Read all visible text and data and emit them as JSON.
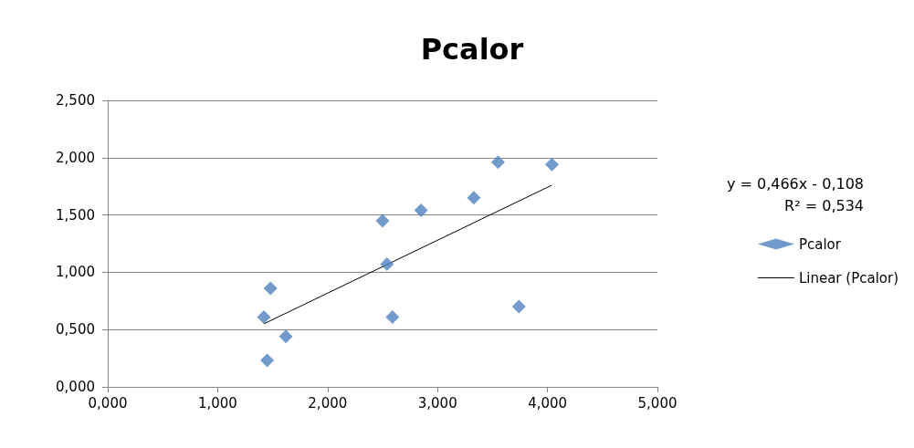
{
  "chart_data": {
    "type": "scatter",
    "title": "Pcalor",
    "x": [
      1.42,
      1.48,
      1.45,
      1.62,
      2.5,
      2.54,
      2.59,
      2.85,
      3.33,
      3.55,
      3.74,
      4.04
    ],
    "series": [
      {
        "name": "Pcalor",
        "color": "#4f81bd",
        "marker": "diamond",
        "values": [
          0.61,
          0.86,
          0.23,
          0.44,
          1.45,
          1.07,
          0.61,
          1.54,
          1.65,
          1.96,
          0.7,
          1.94
        ]
      },
      {
        "name": "Linear (Pcalor)",
        "type": "line",
        "color": "#000000",
        "marker": "none",
        "x": [
          1.42,
          4.04
        ],
        "values": [
          0.55,
          1.76
        ]
      }
    ],
    "xlim": [
      0,
      5
    ],
    "xticks": [
      {
        "value": 0,
        "label": "0,000"
      },
      {
        "value": 1,
        "label": "1,000"
      },
      {
        "value": 2,
        "label": "2,000"
      },
      {
        "value": 3,
        "label": "3,000"
      },
      {
        "value": 4,
        "label": "4,000"
      },
      {
        "value": 5,
        "label": "5,000"
      }
    ],
    "ylim": [
      0,
      2.5
    ],
    "yticks": [
      {
        "value": 0,
        "label": "0,000"
      },
      {
        "value": 0.5,
        "label": "0,500"
      },
      {
        "value": 1,
        "label": "1,000"
      },
      {
        "value": 1.5,
        "label": "1,500"
      },
      {
        "value": 2,
        "label": "2,000"
      },
      {
        "value": 2.5,
        "label": "2,500"
      }
    ],
    "grid": "y",
    "legend": "right",
    "annotations": [
      "y = 0,466x - 0,108",
      "R² = 0,534"
    ]
  }
}
